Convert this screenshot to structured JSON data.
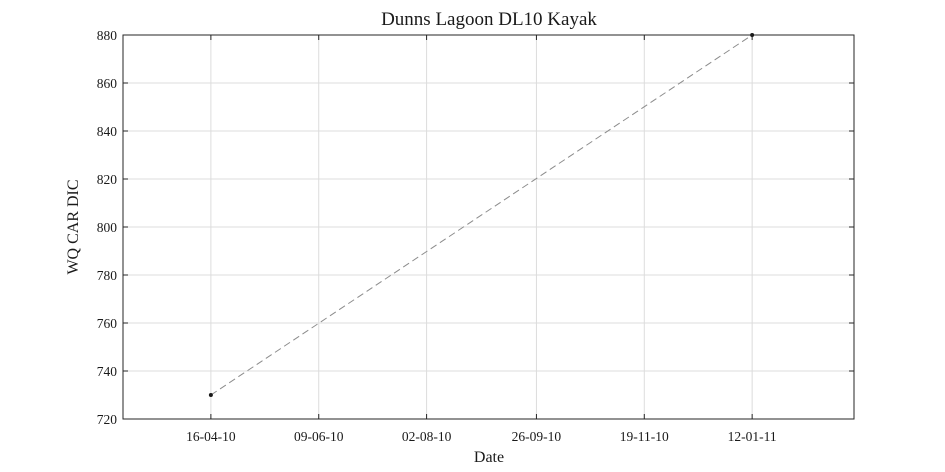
{
  "chart_data": {
    "type": "line",
    "title": "Dunns Lagoon DL10 Kayak",
    "xlabel": "Date",
    "ylabel": "WQ CAR DIC",
    "x_type": "date",
    "x_display_format": "DD-MM-YY",
    "xlim": [
      "2010-03-03",
      "2011-03-04"
    ],
    "ylim": [
      720,
      880
    ],
    "x_ticks": [
      "2010-04-16",
      "2010-06-09",
      "2010-08-02",
      "2010-09-26",
      "2010-11-19",
      "2011-01-12"
    ],
    "x_tick_labels": [
      "16-04-10",
      "09-06-10",
      "02-08-10",
      "26-09-10",
      "19-11-10",
      "12-01-11"
    ],
    "y_ticks": [
      720,
      740,
      760,
      780,
      800,
      820,
      840,
      860,
      880
    ],
    "y_tick_labels": [
      "720",
      "740",
      "760",
      "780",
      "800",
      "820",
      "840",
      "860",
      "880"
    ],
    "grid": true,
    "series": [
      {
        "x": [
          "2010-04-16",
          "2011-01-12"
        ],
        "values": [
          730,
          880
        ],
        "line_style": "dashed",
        "line_color": "#8c8c8c",
        "marker": "dot",
        "marker_color": "#1a1a1a"
      }
    ]
  }
}
